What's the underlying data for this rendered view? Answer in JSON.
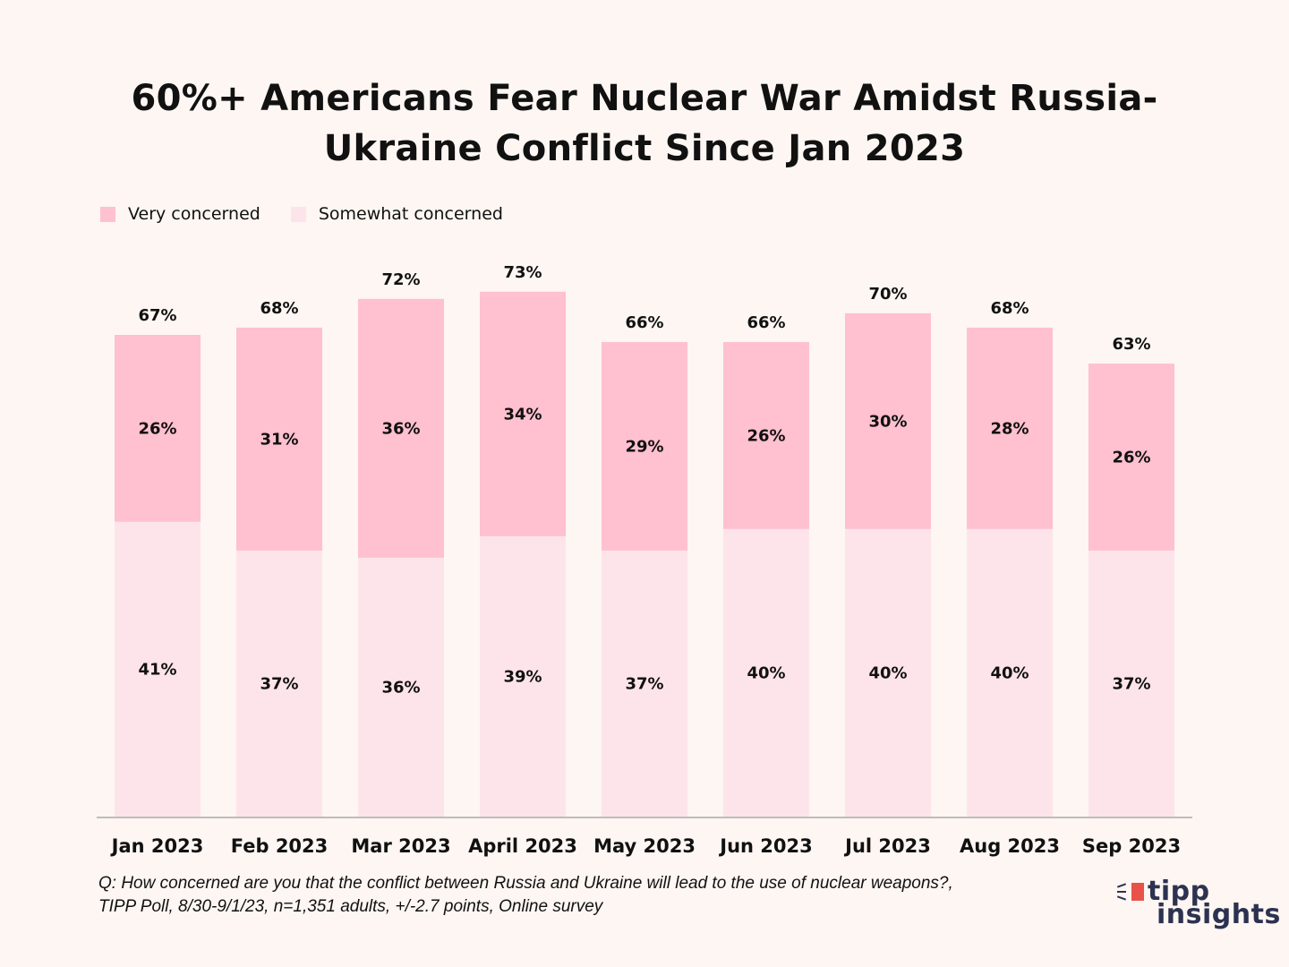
{
  "chart_data": {
    "type": "bar",
    "stacked": true,
    "title": "60%+ Americans Fear Nuclear War Amidst Russia-Ukraine Conflict Since Jan 2023",
    "title_lines": [
      "60%+ Americans Fear Nuclear War Amidst Russia-",
      "Ukraine Conflict Since Jan 2023"
    ],
    "categories": [
      "Jan 2023",
      "Feb 2023",
      "Mar 2023",
      "April 2023",
      "May 2023",
      "Jun 2023",
      "Jul 2023",
      "Aug 2023",
      "Sep 2023"
    ],
    "series": [
      {
        "name": "Somewhat concerned",
        "color": "#fde4ea",
        "values": [
          41,
          37,
          36,
          39,
          37,
          40,
          40,
          40,
          37
        ]
      },
      {
        "name": "Very concerned",
        "color": "#ffc0cf",
        "values": [
          26,
          31,
          36,
          34,
          29,
          26,
          30,
          28,
          26
        ]
      }
    ],
    "totals": [
      67,
      68,
      72,
      73,
      66,
      66,
      70,
      68,
      63
    ],
    "xlabel": "",
    "ylabel": "",
    "ylim": [
      0,
      80
    ],
    "grid": false,
    "legend_position": "top-left",
    "value_suffix": "%"
  },
  "legend": [
    {
      "label": "Very concerned",
      "color": "#ffc0cf"
    },
    {
      "label": "Somewhat concerned",
      "color": "#fde4ea"
    }
  ],
  "footnote": {
    "line1": "Q: How concerned are you that the conflict between Russia and Ukraine will lead to the use of nuclear weapons?,",
    "line2": "TIPP Poll, 8/30-9/1/23, n=1,351 adults, +/-2.7 points, Online survey"
  },
  "logo": {
    "line1": "tipp",
    "line2": "insights"
  }
}
